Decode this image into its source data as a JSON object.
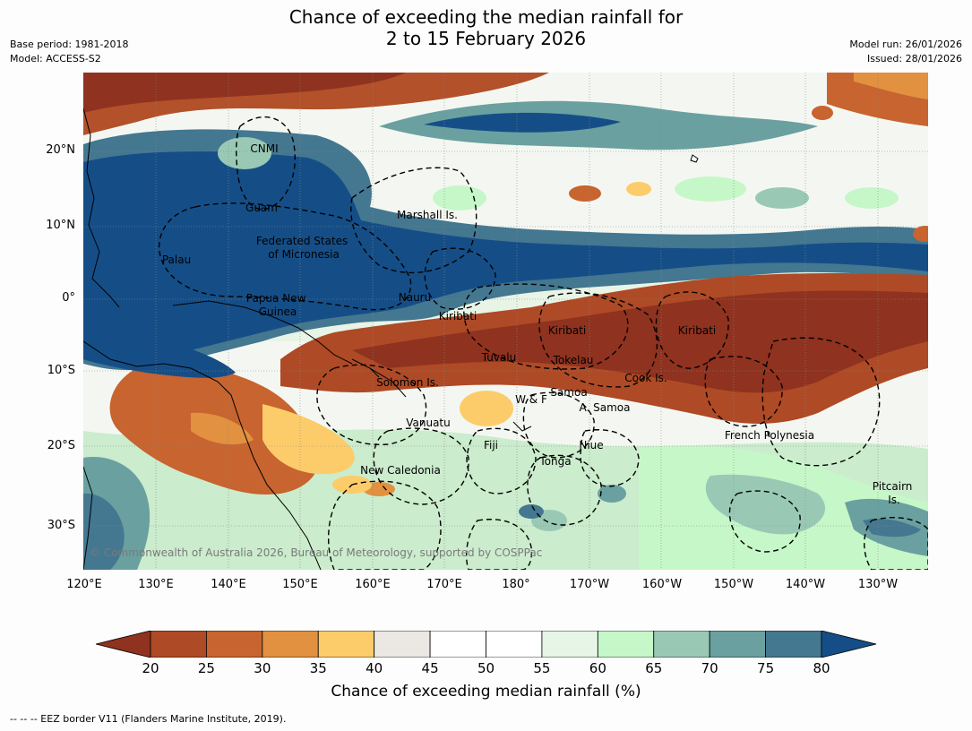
{
  "header": {
    "title_line1": "Chance of exceeding the median rainfall for",
    "title_line2": "2 to 15 February 2026",
    "base_period": "Base period: 1981-2018",
    "model": "Model: ACCESS-S2",
    "model_run": "Model run: 26/01/2026",
    "issued": "Issued: 28/01/2026"
  },
  "map": {
    "lat_labels": [
      "20°N",
      "10°N",
      "0°",
      "10°S",
      "20°S",
      "30°S"
    ],
    "lon_labels": [
      "120°E",
      "130°E",
      "140°E",
      "150°E",
      "160°E",
      "170°E",
      "180°",
      "170°W",
      "160°W",
      "150°W",
      "140°W",
      "130°W"
    ],
    "regions": [
      {
        "name": "cnmi",
        "lines": [
          "CNMI"
        ]
      },
      {
        "name": "guam",
        "lines": [
          "Guam"
        ]
      },
      {
        "name": "marshall",
        "lines": [
          "Marshall Is."
        ]
      },
      {
        "name": "fsm",
        "lines": [
          "Federated States",
          "of Micronesia"
        ]
      },
      {
        "name": "palau",
        "lines": [
          "Palau"
        ]
      },
      {
        "name": "png",
        "lines": [
          "Papua New",
          "Guinea"
        ]
      },
      {
        "name": "nauru",
        "lines": [
          "Nauru"
        ]
      },
      {
        "name": "kiribati-w",
        "lines": [
          "Kiribati"
        ]
      },
      {
        "name": "kiribati-c",
        "lines": [
          "Kiribati"
        ]
      },
      {
        "name": "kiribati-e",
        "lines": [
          "Kiribati"
        ]
      },
      {
        "name": "tuvalu",
        "lines": [
          "Tuvalu"
        ]
      },
      {
        "name": "tokelau",
        "lines": [
          "Tokelau"
        ]
      },
      {
        "name": "cook",
        "lines": [
          "Cook Is."
        ]
      },
      {
        "name": "solomon",
        "lines": [
          "Solomon Is."
        ]
      },
      {
        "name": "wf",
        "lines": [
          "W & F"
        ]
      },
      {
        "name": "samoa",
        "lines": [
          "Samoa"
        ]
      },
      {
        "name": "asamoa",
        "lines": [
          "A. Samoa"
        ]
      },
      {
        "name": "vanuatu",
        "lines": [
          "Vanuatu"
        ]
      },
      {
        "name": "frenchpoly",
        "lines": [
          "French Polynesia"
        ]
      },
      {
        "name": "fiji",
        "lines": [
          "Fiji"
        ]
      },
      {
        "name": "niue",
        "lines": [
          "Niue"
        ]
      },
      {
        "name": "tonga",
        "lines": [
          "Tonga"
        ]
      },
      {
        "name": "newcal",
        "lines": [
          "New Caledonia"
        ]
      },
      {
        "name": "pitcairn",
        "lines": [
          "Pitcairn",
          "Is."
        ]
      }
    ],
    "copyright": "© Commonwealth of Australia 2026, Bureau of Meteorology, supported by COSPPac"
  },
  "colorbar": {
    "ticks": [
      "20",
      "25",
      "30",
      "35",
      "40",
      "45",
      "50",
      "55",
      "60",
      "65",
      "70",
      "75",
      "80"
    ],
    "colors": [
      "#8f321f",
      "#ae4a26",
      "#c7642f",
      "#e1913f",
      "#fdcc6a",
      "#ebe8e3",
      "#ffffff",
      "#ffffff",
      "#e6f5e6",
      "#c6f7c8",
      "#99c9b5",
      "#6aa0a0",
      "#447790",
      "#154e87"
    ],
    "label": "Chance of exceeding median rainfall (%)"
  },
  "footnote": "--  --  -- EEZ border V11 (Flanders Marine Institute, 2019)."
}
